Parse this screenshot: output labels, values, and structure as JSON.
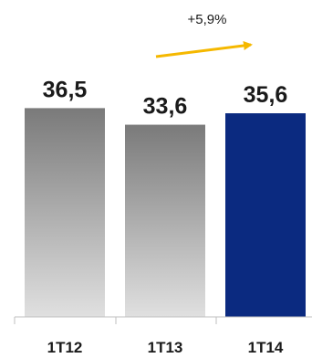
{
  "chart_data": {
    "type": "bar",
    "categories": [
      "1T12",
      "1T13",
      "1T14"
    ],
    "values": [
      36.5,
      33.6,
      35.6
    ],
    "value_labels": [
      "36,5",
      "33,6",
      "35,6"
    ],
    "ylim": [
      0,
      38
    ],
    "grid": false,
    "title": "",
    "xlabel": "",
    "ylabel": "",
    "annotation": {
      "text": "+5,9%",
      "from": "1T13",
      "to": "1T14",
      "color": "#F5B800"
    },
    "bar_colors": [
      "gray-gradient",
      "gray-gradient",
      "#0B2A80"
    ]
  }
}
